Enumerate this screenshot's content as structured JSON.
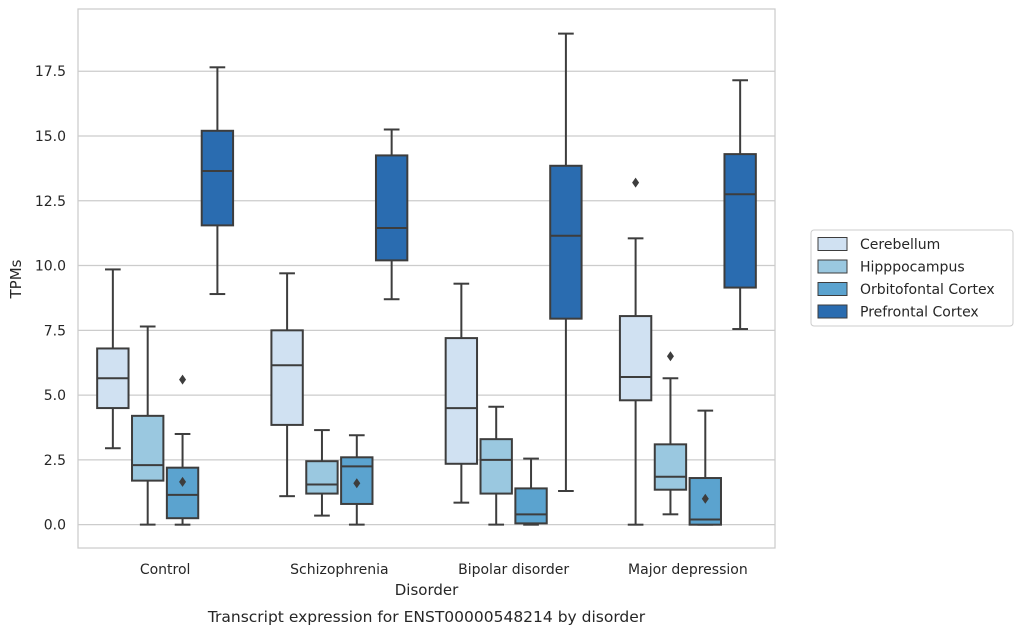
{
  "chart_data": {
    "type": "box",
    "caption": "Transcript expression for ENST00000548214 by disorder",
    "xlabel": "Disorder",
    "ylabel": "TPMs",
    "categories": [
      "Control",
      "Schizophrenia",
      "Bipolar disorder",
      "Major depression"
    ],
    "yticks": [
      "0.0",
      "2.5",
      "5.0",
      "7.5",
      "10.0",
      "12.5",
      "15.0",
      "17.5"
    ],
    "ylim": [
      -0.9,
      19.9
    ],
    "grid": "horizontal",
    "legend_position": "right",
    "series": [
      {
        "name": "Cerebellum",
        "color": "#d0e1f2",
        "boxes": [
          {
            "whislo": 2.95,
            "q1": 4.5,
            "med": 5.65,
            "q3": 6.8,
            "whishi": 9.85,
            "fliers": []
          },
          {
            "whislo": 1.1,
            "q1": 3.85,
            "med": 6.15,
            "q3": 7.5,
            "whishi": 9.7,
            "fliers": []
          },
          {
            "whislo": 0.85,
            "q1": 2.35,
            "med": 4.5,
            "q3": 7.2,
            "whishi": 9.3,
            "fliers": []
          },
          {
            "whislo": 0.0,
            "q1": 4.8,
            "med": 5.7,
            "q3": 8.05,
            "whishi": 11.05,
            "fliers": [
              13.2
            ]
          }
        ]
      },
      {
        "name": "Hipppocampus",
        "color": "#9ac8e0",
        "boxes": [
          {
            "whislo": 0.0,
            "q1": 1.7,
            "med": 2.3,
            "q3": 4.2,
            "whishi": 7.65,
            "fliers": []
          },
          {
            "whislo": 0.35,
            "q1": 1.2,
            "med": 1.55,
            "q3": 2.45,
            "whishi": 3.65,
            "fliers": []
          },
          {
            "whislo": 0.0,
            "q1": 1.2,
            "med": 2.5,
            "q3": 3.3,
            "whishi": 4.55,
            "fliers": []
          },
          {
            "whislo": 0.4,
            "q1": 1.35,
            "med": 1.85,
            "q3": 3.1,
            "whishi": 5.65,
            "fliers": [
              6.5
            ]
          }
        ]
      },
      {
        "name": "Orbitofontal Cortex",
        "color": "#5ba3cf",
        "boxes": [
          {
            "whislo": 0.0,
            "q1": 0.25,
            "med": 1.15,
            "q3": 2.2,
            "whishi": 3.5,
            "fliers": [
              1.65,
              5.6
            ]
          },
          {
            "whislo": 0.0,
            "q1": 0.8,
            "med": 2.25,
            "q3": 2.6,
            "whishi": 3.45,
            "fliers": [
              1.6
            ]
          },
          {
            "whislo": 0.0,
            "q1": 0.05,
            "med": 0.4,
            "q3": 1.4,
            "whishi": 2.55,
            "fliers": []
          },
          {
            "whislo": 0.0,
            "q1": 0.0,
            "med": 0.2,
            "q3": 1.8,
            "whishi": 4.4,
            "fliers": [
              1.0
            ]
          }
        ]
      },
      {
        "name": "Prefrontal Cortex",
        "color": "#2a6cb0",
        "boxes": [
          {
            "whislo": 8.9,
            "q1": 11.55,
            "med": 13.65,
            "q3": 15.2,
            "whishi": 17.65,
            "fliers": []
          },
          {
            "whislo": 8.7,
            "q1": 10.2,
            "med": 11.45,
            "q3": 14.25,
            "whishi": 15.25,
            "fliers": []
          },
          {
            "whislo": 1.3,
            "q1": 7.95,
            "med": 11.15,
            "q3": 13.85,
            "whishi": 18.95,
            "fliers": []
          },
          {
            "whislo": 7.55,
            "q1": 9.15,
            "med": 12.75,
            "q3": 14.3,
            "whishi": 17.15,
            "fliers": []
          }
        ]
      }
    ]
  }
}
